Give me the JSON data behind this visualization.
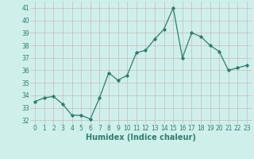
{
  "x": [
    0,
    1,
    2,
    3,
    4,
    5,
    6,
    7,
    8,
    9,
    10,
    11,
    12,
    13,
    14,
    15,
    16,
    17,
    18,
    19,
    20,
    21,
    22,
    23
  ],
  "y": [
    33.5,
    33.8,
    33.9,
    33.3,
    32.4,
    32.4,
    32.1,
    33.8,
    35.8,
    35.2,
    35.6,
    37.4,
    37.6,
    38.5,
    39.3,
    41.0,
    37.0,
    39.0,
    38.7,
    38.0,
    37.5,
    36.0,
    36.2,
    36.4
  ],
  "xlabel": "Humidex (Indice chaleur)",
  "yticks": [
    32,
    33,
    34,
    35,
    36,
    37,
    38,
    39,
    40,
    41
  ],
  "xticks": [
    0,
    1,
    2,
    3,
    4,
    5,
    6,
    7,
    8,
    9,
    10,
    11,
    12,
    13,
    14,
    15,
    16,
    17,
    18,
    19,
    20,
    21,
    22,
    23
  ],
  "ylim": [
    31.7,
    41.5
  ],
  "xlim": [
    -0.5,
    23.5
  ],
  "line_color": "#2e7d6e",
  "marker": "D",
  "marker_size": 1.8,
  "line_width": 0.9,
  "bg_color": "#cff0ea",
  "grid_color": "#c8b8b8",
  "tick_label_fontsize": 5.5,
  "xlabel_fontsize": 7,
  "xlabel_fontweight": "bold",
  "tick_color": "#2e7d6e"
}
